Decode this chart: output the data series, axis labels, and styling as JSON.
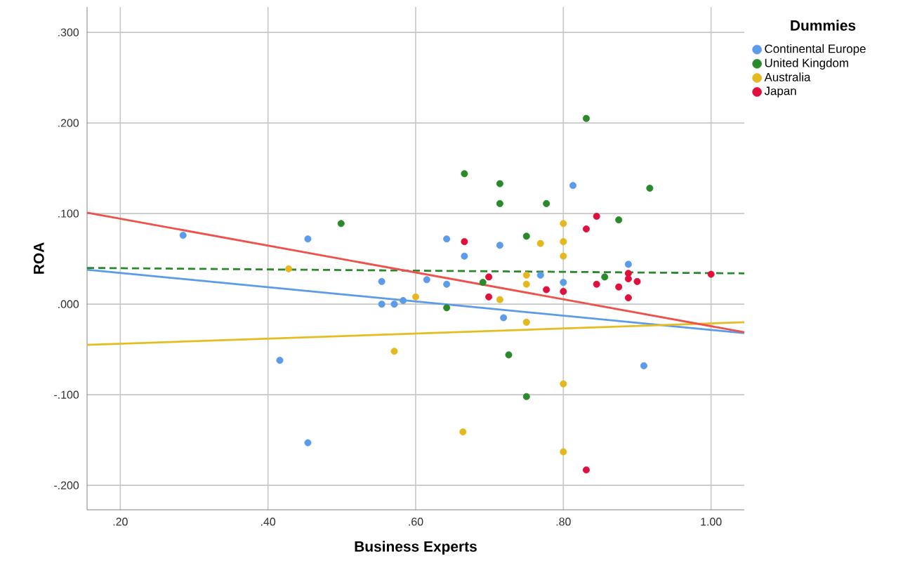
{
  "chart_data": {
    "type": "scatter",
    "xlabel": "Business Experts",
    "ylabel": "ROA",
    "legend_title": "Dummies",
    "legend": "top right",
    "grid": true,
    "xlim": [
      0.155,
      1.045
    ],
    "ylim": [
      -0.227,
      0.328
    ],
    "xticks": [
      {
        "value": 0.2,
        "label": ".20"
      },
      {
        "value": 0.4,
        "label": ".40"
      },
      {
        "value": 0.6,
        "label": ".60"
      },
      {
        "value": 0.8,
        "label": ".80"
      },
      {
        "value": 1.0,
        "label": "1.00"
      }
    ],
    "yticks": [
      {
        "value": -0.2,
        "label": "-.200"
      },
      {
        "value": -0.1,
        "label": "-.100"
      },
      {
        "value": 0.0,
        "label": ".000"
      },
      {
        "value": 0.1,
        "label": ".100"
      },
      {
        "value": 0.2,
        "label": ".200"
      },
      {
        "value": 0.3,
        "label": ".300"
      }
    ],
    "series": [
      {
        "name": "Continental Europe",
        "marker": "circle",
        "color": "#5b9bea",
        "x": [
          0.285,
          0.454,
          0.642,
          0.666,
          0.714,
          0.813,
          0.888,
          0.554,
          0.615,
          0.642,
          0.554,
          0.571,
          0.583,
          0.416,
          0.454,
          0.769,
          0.8,
          0.719,
          0.909
        ],
        "values": [
          0.076,
          0.072,
          0.072,
          0.053,
          0.065,
          0.131,
          0.044,
          0.025,
          0.027,
          0.022,
          0.0,
          0.0,
          0.004,
          -0.062,
          -0.153,
          0.032,
          0.024,
          -0.015,
          -0.068
        ]
      },
      {
        "name": "United Kingdom",
        "marker": "circle",
        "color": "#2a8a2a",
        "x": [
          0.499,
          0.666,
          0.714,
          0.714,
          0.777,
          0.75,
          0.831,
          0.875,
          0.917,
          0.856,
          0.642,
          0.691,
          0.726,
          0.75
        ],
        "values": [
          0.089,
          0.144,
          0.133,
          0.111,
          0.111,
          0.075,
          0.205,
          0.093,
          0.128,
          0.03,
          -0.004,
          0.024,
          -0.056,
          -0.102
        ]
      },
      {
        "name": "Australia",
        "marker": "circle",
        "color": "#e6b820",
        "x": [
          0.428,
          0.6,
          0.571,
          0.664,
          0.8,
          0.769,
          0.8,
          0.8,
          0.75,
          0.75,
          0.714,
          0.75,
          0.8,
          0.8
        ],
        "values": [
          0.039,
          0.008,
          -0.052,
          -0.141,
          0.089,
          0.067,
          0.069,
          0.053,
          0.032,
          0.022,
          0.005,
          -0.02,
          -0.088,
          -0.163
        ]
      },
      {
        "name": "Japan",
        "marker": "circle",
        "color": "#e0103c",
        "x": [
          0.666,
          0.831,
          0.845,
          0.699,
          0.699,
          0.777,
          0.8,
          0.845,
          0.875,
          0.888,
          0.888,
          0.9,
          0.888,
          1.0,
          0.831
        ],
        "values": [
          0.069,
          0.083,
          0.097,
          0.03,
          0.008,
          0.016,
          0.014,
          0.022,
          0.019,
          0.034,
          0.028,
          0.025,
          0.007,
          0.033,
          -0.183
        ]
      },
      {
        "type": "line",
        "marker": "none",
        "color": "#5b9bea",
        "x": [
          0.155,
          1.045
        ],
        "values": [
          0.038,
          -0.032
        ]
      },
      {
        "type": "line",
        "marker": "none",
        "color": "#2a8a2a",
        "line_style": "dashed",
        "x": [
          0.155,
          1.045
        ],
        "values": [
          0.04,
          0.034
        ]
      },
      {
        "type": "line",
        "marker": "none",
        "color": "#e6bd20",
        "x": [
          0.155,
          1.045
        ],
        "values": [
          -0.045,
          -0.02
        ]
      },
      {
        "type": "line",
        "marker": "none",
        "color": "#f0504a",
        "x": [
          0.155,
          1.045
        ],
        "values": [
          0.101,
          -0.031
        ]
      }
    ]
  }
}
